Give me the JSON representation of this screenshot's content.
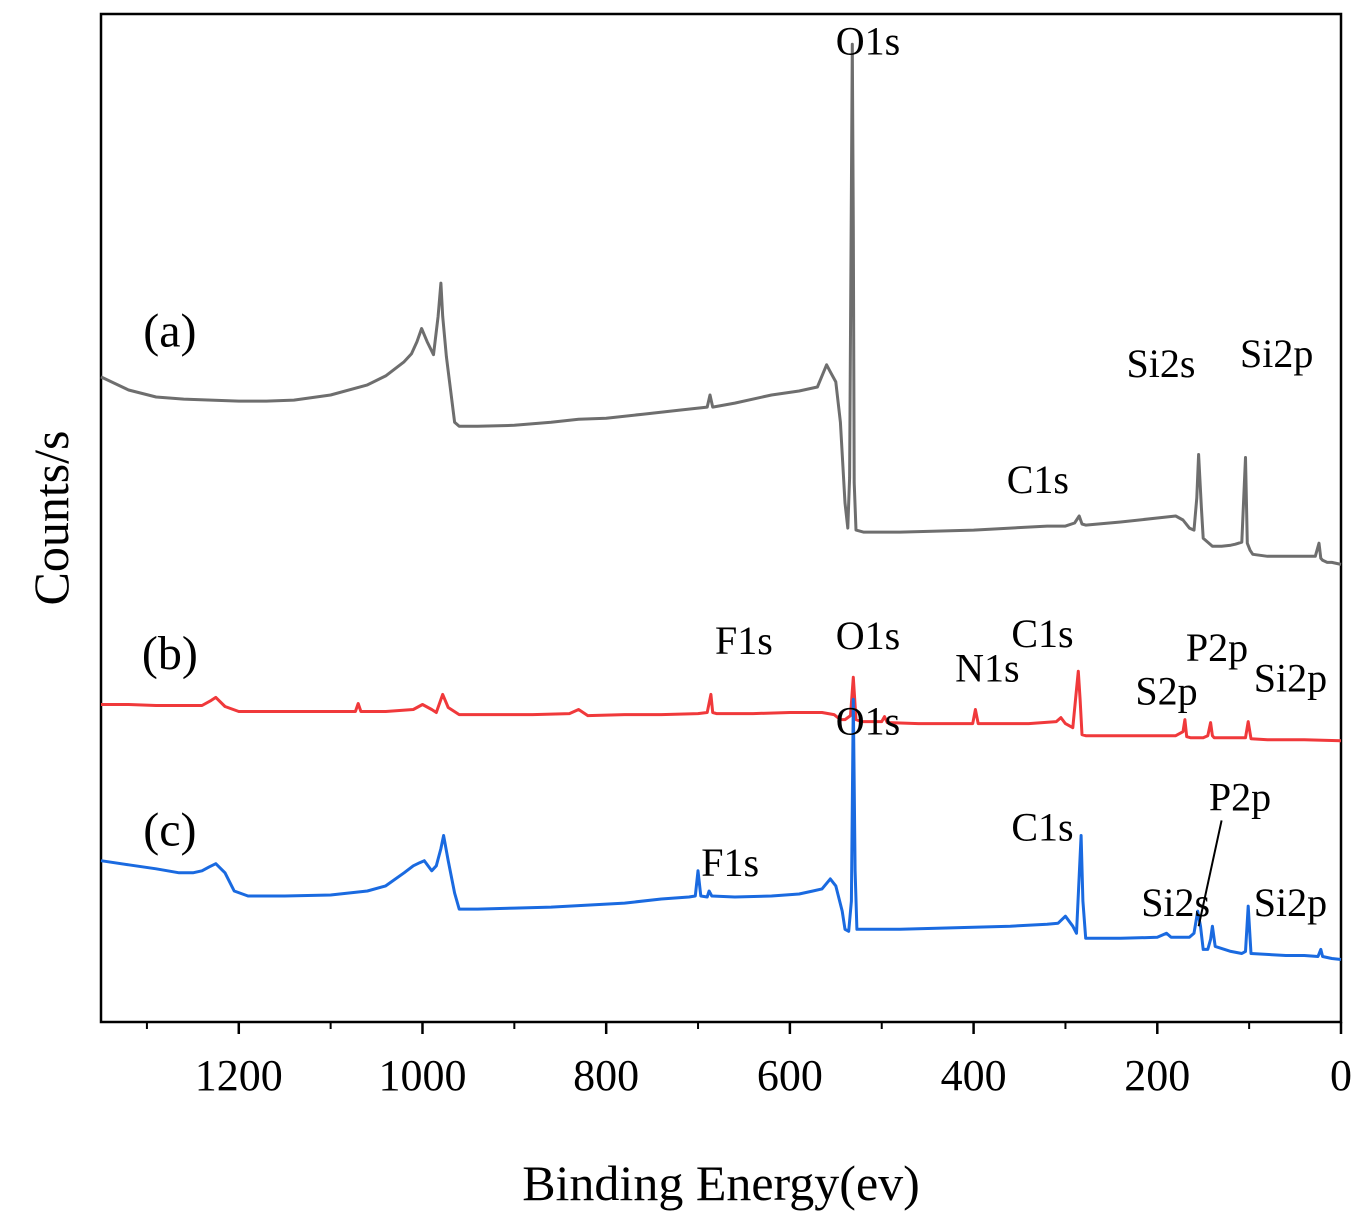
{
  "chart_data": {
    "type": "line",
    "title": "",
    "xlabel": "Binding Energy(ev)",
    "ylabel": "Counts/s",
    "xlim": [
      1350,
      0
    ],
    "x_reversed": true,
    "ylim": [
      0,
      10
    ],
    "y_ticks_shown": false,
    "x_ticks": [
      1200,
      1000,
      800,
      600,
      400,
      200,
      0
    ],
    "x_minor_ticks": [
      1300,
      1100,
      900,
      700,
      500,
      300,
      100
    ],
    "grid": false,
    "series": [
      {
        "name": "(a)",
        "color": "#6e6e6e",
        "x": [
          1350,
          1320,
          1290,
          1260,
          1230,
          1200,
          1170,
          1140,
          1100,
          1060,
          1040,
          1020,
          1012,
          1006,
          1001,
          995,
          988,
          983,
          980,
          978,
          974,
          965,
          960,
          940,
          900,
          860,
          830,
          800,
          760,
          720,
          690,
          687,
          684,
          660,
          620,
          590,
          570,
          560,
          556,
          550,
          545,
          540,
          537,
          535,
          532,
          531,
          530,
          528,
          520,
          480,
          440,
          400,
          360,
          320,
          300,
          290,
          285,
          282,
          278,
          240,
          200,
          180,
          172,
          165,
          160,
          157,
          155,
          152,
          150,
          140,
          130,
          120,
          115,
          108,
          104,
          102,
          99,
          96,
          80,
          60,
          40,
          28,
          24,
          22,
          20,
          15,
          10,
          0
        ],
        "y": [
          6.4,
          6.27,
          6.2,
          6.18,
          6.17,
          6.16,
          6.16,
          6.17,
          6.22,
          6.32,
          6.41,
          6.55,
          6.63,
          6.75,
          6.88,
          6.75,
          6.62,
          7.0,
          7.33,
          7.0,
          6.6,
          5.95,
          5.91,
          5.91,
          5.92,
          5.95,
          5.98,
          5.99,
          6.03,
          6.07,
          6.1,
          6.22,
          6.1,
          6.14,
          6.22,
          6.26,
          6.3,
          6.52,
          6.45,
          6.35,
          5.95,
          5.15,
          4.9,
          5.4,
          9.7,
          7.9,
          5.35,
          4.88,
          4.86,
          4.86,
          4.87,
          4.88,
          4.9,
          4.92,
          4.92,
          4.95,
          5.02,
          4.94,
          4.93,
          4.96,
          5.0,
          5.02,
          4.98,
          4.9,
          4.88,
          5.2,
          5.63,
          5.1,
          4.8,
          4.72,
          4.72,
          4.73,
          4.74,
          4.76,
          5.6,
          4.75,
          4.68,
          4.64,
          4.62,
          4.62,
          4.62,
          4.62,
          4.75,
          4.6,
          4.58,
          4.56,
          4.56,
          4.54
        ]
      },
      {
        "name": "(b)",
        "color": "#f0393b",
        "x": [
          1350,
          1320,
          1290,
          1260,
          1240,
          1230,
          1225,
          1215,
          1200,
          1150,
          1100,
          1073,
          1070,
          1067,
          1040,
          1010,
          1000,
          990,
          985,
          978,
          972,
          960,
          920,
          880,
          840,
          830,
          820,
          780,
          740,
          700,
          690,
          686,
          684,
          680,
          640,
          600,
          565,
          552,
          545,
          540,
          534,
          531,
          528,
          522,
          510,
          500,
          497,
          494,
          460,
          430,
          401,
          398,
          395,
          370,
          340,
          310,
          305,
          300,
          292,
          288,
          286,
          284,
          282,
          278,
          260,
          230,
          200,
          180,
          172,
          170,
          168,
          164,
          150,
          145,
          142,
          140,
          138,
          120,
          104,
          101,
          98,
          80,
          40,
          0
        ],
        "y": [
          3.15,
          3.15,
          3.14,
          3.14,
          3.14,
          3.19,
          3.22,
          3.13,
          3.08,
          3.08,
          3.08,
          3.08,
          3.16,
          3.08,
          3.08,
          3.1,
          3.15,
          3.1,
          3.07,
          3.25,
          3.12,
          3.05,
          3.05,
          3.05,
          3.06,
          3.1,
          3.04,
          3.05,
          3.05,
          3.06,
          3.07,
          3.25,
          3.07,
          3.06,
          3.06,
          3.07,
          3.07,
          3.05,
          3.0,
          3.0,
          3.04,
          3.42,
          3.0,
          2.98,
          2.98,
          2.98,
          3.03,
          2.97,
          2.96,
          2.96,
          2.96,
          3.1,
          2.96,
          2.96,
          2.96,
          2.98,
          3.02,
          2.96,
          2.92,
          3.3,
          3.48,
          3.2,
          2.85,
          2.84,
          2.84,
          2.84,
          2.84,
          2.84,
          2.88,
          3.0,
          2.83,
          2.82,
          2.82,
          2.84,
          2.97,
          2.84,
          2.82,
          2.82,
          2.82,
          2.98,
          2.81,
          2.8,
          2.8,
          2.79
        ]
      },
      {
        "name": "(c)",
        "color": "#1a6ae0",
        "x": [
          1350,
          1320,
          1290,
          1265,
          1250,
          1240,
          1232,
          1225,
          1215,
          1205,
          1190,
          1150,
          1100,
          1060,
          1040,
          1020,
          1010,
          1003,
          998,
          990,
          985,
          980,
          977,
          972,
          965,
          960,
          940,
          900,
          860,
          820,
          780,
          740,
          710,
          703,
          700,
          697,
          690,
          688,
          685,
          660,
          620,
          590,
          575,
          565,
          556,
          550,
          543,
          540,
          536,
          533,
          531,
          529,
          527,
          520,
          480,
          440,
          400,
          360,
          320,
          308,
          300,
          292,
          288,
          285,
          283,
          281,
          278,
          240,
          200,
          190,
          185,
          175,
          165,
          160,
          156,
          153,
          150,
          145,
          142,
          140,
          137,
          120,
          108,
          104,
          101,
          98,
          60,
          40,
          25,
          22,
          20,
          10,
          0
        ],
        "y": [
          1.6,
          1.56,
          1.52,
          1.48,
          1.48,
          1.5,
          1.54,
          1.57,
          1.48,
          1.3,
          1.25,
          1.25,
          1.26,
          1.3,
          1.35,
          1.48,
          1.55,
          1.58,
          1.6,
          1.5,
          1.55,
          1.72,
          1.85,
          1.6,
          1.28,
          1.12,
          1.12,
          1.13,
          1.14,
          1.16,
          1.18,
          1.22,
          1.24,
          1.25,
          1.5,
          1.25,
          1.24,
          1.3,
          1.25,
          1.24,
          1.25,
          1.27,
          1.3,
          1.32,
          1.42,
          1.35,
          1.1,
          0.92,
          0.9,
          1.2,
          3.2,
          1.5,
          0.92,
          0.92,
          0.92,
          0.93,
          0.94,
          0.95,
          0.97,
          0.98,
          1.05,
          0.95,
          0.88,
          1.45,
          1.85,
          1.2,
          0.83,
          0.83,
          0.84,
          0.88,
          0.84,
          0.84,
          0.84,
          0.88,
          1.1,
          0.95,
          0.72,
          0.72,
          0.82,
          0.95,
          0.75,
          0.7,
          0.68,
          0.7,
          1.15,
          0.68,
          0.66,
          0.66,
          0.65,
          0.72,
          0.65,
          0.63,
          0.62
        ]
      }
    ],
    "series_labels": [
      {
        "text": "(a)",
        "x": 1275,
        "y": 6.7
      },
      {
        "text": "(b)",
        "x": 1275,
        "y": 3.5
      },
      {
        "text": "(c)",
        "x": 1275,
        "y": 1.75
      }
    ],
    "peak_labels": [
      {
        "text": "O1s",
        "x": 515,
        "y": 9.6,
        "series": "(a)"
      },
      {
        "text": "C1s",
        "x": 330,
        "y": 5.25,
        "series": "(a)"
      },
      {
        "text": "Si2s",
        "x": 196,
        "y": 6.4,
        "series": "(a)"
      },
      {
        "text": "Si2p",
        "x": 70,
        "y": 6.5,
        "series": "(a)"
      },
      {
        "text": "F1s",
        "x": 650,
        "y": 3.65,
        "series": "(b)"
      },
      {
        "text": "O1s",
        "x": 515,
        "y": 3.7,
        "series": "(b)"
      },
      {
        "text": "N1s",
        "x": 385,
        "y": 3.38,
        "series": "(b)"
      },
      {
        "text": "C1s",
        "x": 325,
        "y": 3.72,
        "series": "(b)"
      },
      {
        "text": "S2p",
        "x": 190,
        "y": 3.15,
        "series": "(b)"
      },
      {
        "text": "P2p",
        "x": 135,
        "y": 3.58,
        "series": "(b)"
      },
      {
        "text": "Si2p",
        "x": 55,
        "y": 3.28,
        "series": "(b)"
      },
      {
        "text": "O1s",
        "x": 515,
        "y": 2.85,
        "series": "(c)"
      },
      {
        "text": "F1s",
        "x": 665,
        "y": 1.45,
        "series": "(c)"
      },
      {
        "text": "C1s",
        "x": 325,
        "y": 1.8,
        "series": "(c)"
      },
      {
        "text": "P2p",
        "x": 110,
        "y": 2.1,
        "series": "(c)"
      },
      {
        "text": "Si2s",
        "x": 180,
        "y": 1.05,
        "series": "(c)"
      },
      {
        "text": "Si2p",
        "x": 55,
        "y": 1.05,
        "series": "(c)"
      }
    ],
    "leader_line": {
      "from_x": 130,
      "from_y": 2.0,
      "to_x": 155,
      "to_y": 0.95
    }
  }
}
